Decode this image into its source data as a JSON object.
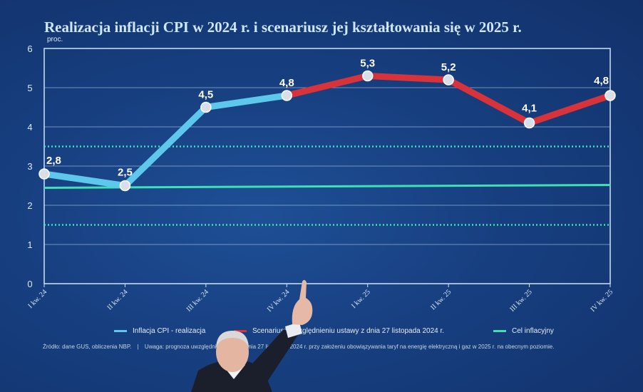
{
  "title": "Realizacja inflacji CPI w 2024 r. i scenariusz jej kształtowania się w 2025 r.",
  "chart_data": {
    "type": "line",
    "title": "Realizacja inflacji CPI w 2024 r. i scenariusz jej kształtowania się w 2025 r.",
    "ylabel": "proc.",
    "ylim": [
      0,
      6
    ],
    "yticks": [
      "0",
      "1",
      "2",
      "3",
      "4",
      "5",
      "6"
    ],
    "categories": [
      "I kw. 24",
      "II kw. 24",
      "III kw. 24",
      "IV kw. 24",
      "I kw. 25",
      "II kw. 25",
      "III kw. 25",
      "IV kw. 25"
    ],
    "series": [
      {
        "name": "Inflacja CPI - realizacja",
        "color": "#5ec8ec",
        "values": [
          2.8,
          2.5,
          4.5,
          4.8,
          null,
          null,
          null,
          null
        ],
        "labels": [
          "2,8",
          "2,5",
          "4,5",
          "4,8",
          "",
          "",
          "",
          ""
        ]
      },
      {
        "name": "Scenariusz uwzględnieniu ustawy z dnia 27 listopada 2024 r.",
        "color": "#d8323a",
        "values": [
          null,
          null,
          null,
          4.8,
          5.3,
          5.2,
          4.1,
          4.8
        ],
        "labels": [
          "",
          "",
          "",
          "",
          "5,3",
          "5,2",
          "4,1",
          "4,8"
        ]
      }
    ],
    "target": {
      "name": "Cel inflacyjny",
      "value": 2.5,
      "color": "#3ee0b6",
      "band": [
        1.5,
        3.5
      ]
    },
    "grid": true,
    "legend": "bottom"
  },
  "legend": {
    "items": [
      {
        "label": "Inflacja CPI - realizacja",
        "color": "#5ec8ec"
      },
      {
        "label": "Scenariusz uwzględnieniu ustawy z dnia 27 listopada 2024 r.",
        "color": "#d8323a"
      },
      {
        "label": "Cel inflacyjny",
        "color": "#3ee0b6"
      }
    ]
  },
  "footer": {
    "source": "Źródło: dane GUS, obliczenia NBP.",
    "note": "Uwaga: prognoza uwzględnia ustawę z dnia 27 listopada 2024 r. przy założeniu obowiązywania taryf na energię elektryczną i gaz w 2025 r. na obecnym poziomie."
  }
}
